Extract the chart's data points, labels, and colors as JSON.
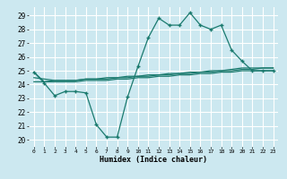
{
  "xlabel": "Humidex (Indice chaleur)",
  "bg_color": "#cce8f0",
  "grid_color": "#ffffff",
  "line_color": "#1a7a6e",
  "xlim": [
    -0.5,
    23.5
  ],
  "ylim": [
    19.5,
    29.6
  ],
  "yticks": [
    20,
    21,
    22,
    23,
    24,
    25,
    26,
    27,
    28,
    29
  ],
  "xticks": [
    0,
    1,
    2,
    3,
    4,
    5,
    6,
    7,
    8,
    9,
    10,
    11,
    12,
    13,
    14,
    15,
    16,
    17,
    18,
    19,
    20,
    21,
    22,
    23
  ],
  "line1_x": [
    0,
    1,
    2,
    3,
    4,
    5,
    6,
    7,
    8,
    9,
    10,
    11,
    12,
    13,
    14,
    15,
    16,
    17,
    18,
    19,
    20,
    21,
    22,
    23
  ],
  "line1_y": [
    24.9,
    24.1,
    23.2,
    23.5,
    23.5,
    23.4,
    21.1,
    20.2,
    20.2,
    23.1,
    25.3,
    27.4,
    28.8,
    28.3,
    28.3,
    29.2,
    28.3,
    28.0,
    28.3,
    26.5,
    25.7,
    25.0,
    25.0,
    25.0
  ],
  "line2_x": [
    0,
    1,
    2,
    3,
    4,
    5,
    6,
    7,
    8,
    9,
    10,
    11,
    12,
    13,
    14,
    15,
    16,
    17,
    18,
    19,
    20,
    21,
    22,
    23
  ],
  "line2_y": [
    24.9,
    24.2,
    24.3,
    24.3,
    24.3,
    24.4,
    24.4,
    24.4,
    24.5,
    24.5,
    24.6,
    24.6,
    24.7,
    24.7,
    24.8,
    24.8,
    24.9,
    24.9,
    25.0,
    25.0,
    25.1,
    25.1,
    25.2,
    25.2
  ],
  "line3_x": [
    0,
    1,
    2,
    3,
    4,
    5,
    6,
    7,
    8,
    9,
    10,
    11,
    12,
    13,
    14,
    15,
    16,
    17,
    18,
    19,
    20,
    21,
    22,
    23
  ],
  "line3_y": [
    24.5,
    24.4,
    24.3,
    24.3,
    24.3,
    24.4,
    24.4,
    24.5,
    24.5,
    24.6,
    24.6,
    24.7,
    24.7,
    24.8,
    24.8,
    24.9,
    24.9,
    25.0,
    25.0,
    25.1,
    25.2,
    25.2,
    25.2,
    25.2
  ],
  "line4_x": [
    0,
    1,
    2,
    3,
    4,
    5,
    6,
    7,
    8,
    9,
    10,
    11,
    12,
    13,
    14,
    15,
    16,
    17,
    18,
    19,
    20,
    21,
    22,
    23
  ],
  "line4_y": [
    24.2,
    24.2,
    24.2,
    24.2,
    24.2,
    24.3,
    24.3,
    24.3,
    24.4,
    24.4,
    24.5,
    24.5,
    24.6,
    24.6,
    24.7,
    24.7,
    24.8,
    24.8,
    24.9,
    24.9,
    25.0,
    25.0,
    25.0,
    25.0
  ]
}
